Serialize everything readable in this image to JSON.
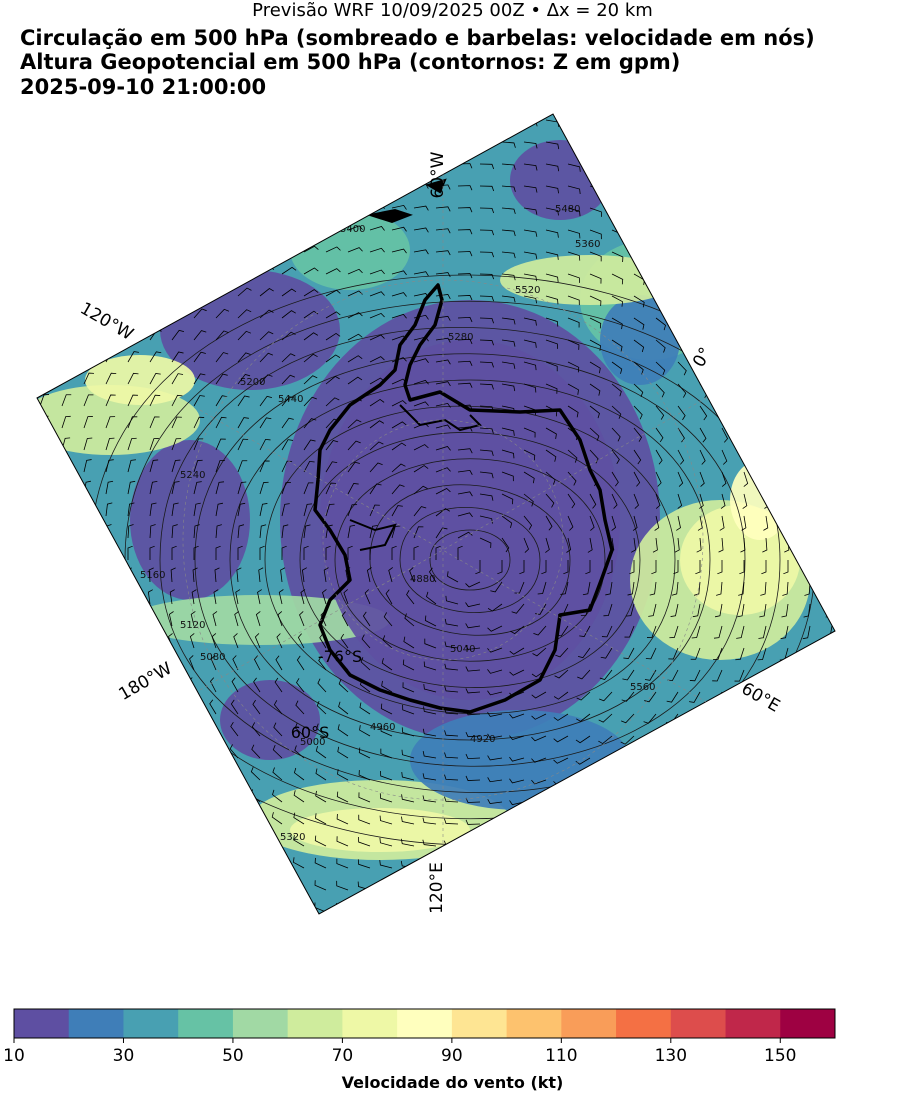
{
  "header": {
    "subtitle": "Previsão WRF 10/09/2025 00Z • Δx = 20 km",
    "title_line1": "Circulação em 500 hPa (sombreado e barbelas: velocidade em nós)",
    "title_line2": "Altura Geopotencial em 500 hPa (contornos: Z em gpm)",
    "title_line3": "2025-09-10 21:00:00"
  },
  "map": {
    "longitude_labels": [
      "60°W",
      "0°",
      "60°E",
      "120°E",
      "180°W",
      "120°W"
    ],
    "latitude_labels": [
      "-76°S",
      "60°S"
    ],
    "contour_labels": [
      "5480",
      "5360",
      "5400",
      "5520",
      "5280",
      "5440",
      "5200",
      "5240",
      "5160",
      "5120",
      "5080",
      "5040",
      "5000",
      "4960",
      "4920",
      "4880",
      "5320",
      "5560"
    ]
  },
  "colorbar": {
    "title": "Velocidade do vento (kt)",
    "ticks": [
      "10",
      "30",
      "50",
      "70",
      "90",
      "110",
      "130",
      "150"
    ],
    "range": [
      10,
      160
    ],
    "bins": [
      10,
      20,
      30,
      40,
      50,
      60,
      70,
      80,
      90,
      100,
      110,
      120,
      130,
      140,
      150,
      160
    ],
    "colors": [
      "#5e4fa2",
      "#3f7eb8",
      "#48a0b2",
      "#66c2a5",
      "#a1d9a4",
      "#cfec9d",
      "#eef8a6",
      "#ffffbe",
      "#fee593",
      "#fdc26e",
      "#f99d59",
      "#f47044",
      "#dd4d4c",
      "#c0274a",
      "#9e0142"
    ]
  },
  "colors": {
    "calm": "#5e4fa2",
    "weak": "#3f7eb8",
    "moderate": "#66c2a5",
    "strong": "#eef8a6",
    "coast": "#000000"
  }
}
